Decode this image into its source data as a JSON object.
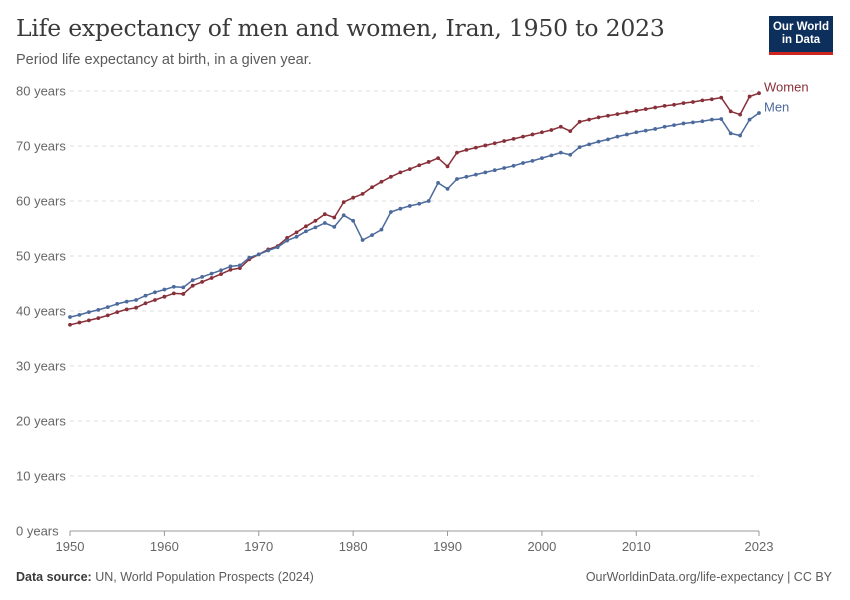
{
  "header": {
    "title": "Life expectancy of men and women, Iran, 1950 to 2023",
    "subtitle": "Period life expectancy at birth, in a given year.",
    "logo_line1": "Our World",
    "logo_line2": "in Data"
  },
  "footer": {
    "source_label": "Data source:",
    "source_text": "UN, World Population Prospects (2024)",
    "url": "OurWorldinData.org/life-expectancy | CC BY"
  },
  "chart_data": {
    "type": "line",
    "title": "Life expectancy of men and women, Iran, 1950 to 2023",
    "subtitle": "Period life expectancy at birth, in a given year.",
    "xlim": [
      1950,
      2023
    ],
    "ylim": [
      0,
      80
    ],
    "x_ticks": [
      1950,
      1960,
      1970,
      1980,
      1990,
      2000,
      2010,
      2023
    ],
    "y_ticks": [
      "0 years",
      "10 years",
      "20 years",
      "30 years",
      "40 years",
      "50 years",
      "60 years",
      "70 years",
      "80 years"
    ],
    "y_tick_values": [
      0,
      10,
      20,
      30,
      40,
      50,
      60,
      70,
      80
    ],
    "grid": "horizontal dashed",
    "legend": "right, inline labels",
    "x": [
      1950,
      1951,
      1952,
      1953,
      1954,
      1955,
      1956,
      1957,
      1958,
      1959,
      1960,
      1961,
      1962,
      1963,
      1964,
      1965,
      1966,
      1967,
      1968,
      1969,
      1970,
      1971,
      1972,
      1973,
      1974,
      1975,
      1976,
      1977,
      1978,
      1979,
      1980,
      1981,
      1982,
      1983,
      1984,
      1985,
      1986,
      1987,
      1988,
      1989,
      1990,
      1991,
      1992,
      1993,
      1994,
      1995,
      1996,
      1997,
      1998,
      1999,
      2000,
      2001,
      2002,
      2003,
      2004,
      2005,
      2006,
      2007,
      2008,
      2009,
      2010,
      2011,
      2012,
      2013,
      2014,
      2015,
      2016,
      2017,
      2018,
      2019,
      2020,
      2021,
      2022,
      2023
    ],
    "series": [
      {
        "name": "Women",
        "color": "#883039",
        "values": [
          37.5,
          37.9,
          38.3,
          38.7,
          39.2,
          39.8,
          40.3,
          40.6,
          41.4,
          42.0,
          42.6,
          43.2,
          43.1,
          44.6,
          45.3,
          46.0,
          46.7,
          47.5,
          47.8,
          49.4,
          50.3,
          51.2,
          51.8,
          53.3,
          54.3,
          55.4,
          56.4,
          57.6,
          57.0,
          59.8,
          60.6,
          61.3,
          62.5,
          63.5,
          64.4,
          65.2,
          65.8,
          66.5,
          67.1,
          67.8,
          66.3,
          68.8,
          69.3,
          69.7,
          70.1,
          70.5,
          70.9,
          71.3,
          71.7,
          72.1,
          72.5,
          72.9,
          73.5,
          72.7,
          74.4,
          74.8,
          75.2,
          75.5,
          75.8,
          76.1,
          76.4,
          76.7,
          77.0,
          77.3,
          77.5,
          77.8,
          78.0,
          78.3,
          78.5,
          78.8,
          76.3,
          75.7,
          79.0,
          79.6
        ]
      },
      {
        "name": "Men",
        "color": "#4c6a9c",
        "values": [
          38.9,
          39.3,
          39.8,
          40.2,
          40.7,
          41.3,
          41.7,
          42.0,
          42.8,
          43.4,
          43.9,
          44.4,
          44.3,
          45.6,
          46.2,
          46.8,
          47.4,
          48.1,
          48.3,
          49.7,
          50.3,
          51.0,
          51.6,
          52.8,
          53.5,
          54.5,
          55.2,
          56.0,
          55.3,
          57.4,
          56.4,
          52.9,
          53.8,
          54.8,
          58.0,
          58.6,
          59.1,
          59.5,
          60.0,
          63.3,
          62.2,
          64.0,
          64.4,
          64.8,
          65.2,
          65.6,
          66.0,
          66.4,
          66.9,
          67.3,
          67.8,
          68.3,
          68.8,
          68.4,
          69.8,
          70.3,
          70.8,
          71.2,
          71.7,
          72.1,
          72.5,
          72.8,
          73.1,
          73.5,
          73.8,
          74.1,
          74.3,
          74.5,
          74.8,
          74.9,
          72.3,
          71.9,
          74.8,
          76.0
        ]
      }
    ]
  }
}
